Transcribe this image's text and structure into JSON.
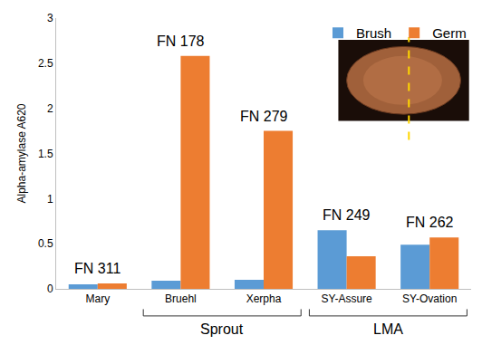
{
  "chart_data": {
    "type": "bar",
    "categories": [
      "Mary",
      "Bruehl",
      "Xerpha",
      "SY-Assure",
      "SY-Ovation"
    ],
    "series": [
      {
        "name": "Brush",
        "color": "#5b9bd5",
        "values": [
          0.05,
          0.09,
          0.1,
          0.65,
          0.49
        ]
      },
      {
        "name": "Germ",
        "color": "#ed7d31",
        "values": [
          0.06,
          2.58,
          1.75,
          0.36,
          0.57
        ]
      }
    ],
    "y_label": "Alpha-amylase A620",
    "ylim": [
      0,
      3
    ],
    "yticks": [
      0,
      0.5,
      1,
      1.5,
      2,
      2.5,
      3
    ],
    "grid": false,
    "legend": "top-right",
    "annotations": [
      {
        "category": "Mary",
        "text": "FN 311"
      },
      {
        "category": "Bruehl",
        "text": "FN 178"
      },
      {
        "category": "Xerpha",
        "text": "FN 279"
      },
      {
        "category": "SY-Assure",
        "text": "FN 249"
      },
      {
        "category": "SY-Ovation",
        "text": "FN 262"
      }
    ],
    "groups": [
      {
        "label": "Sprout",
        "categories": [
          "Bruehl",
          "Xerpha"
        ]
      },
      {
        "label": "LMA",
        "categories": [
          "SY-Assure",
          "SY-Ovation"
        ]
      }
    ]
  }
}
